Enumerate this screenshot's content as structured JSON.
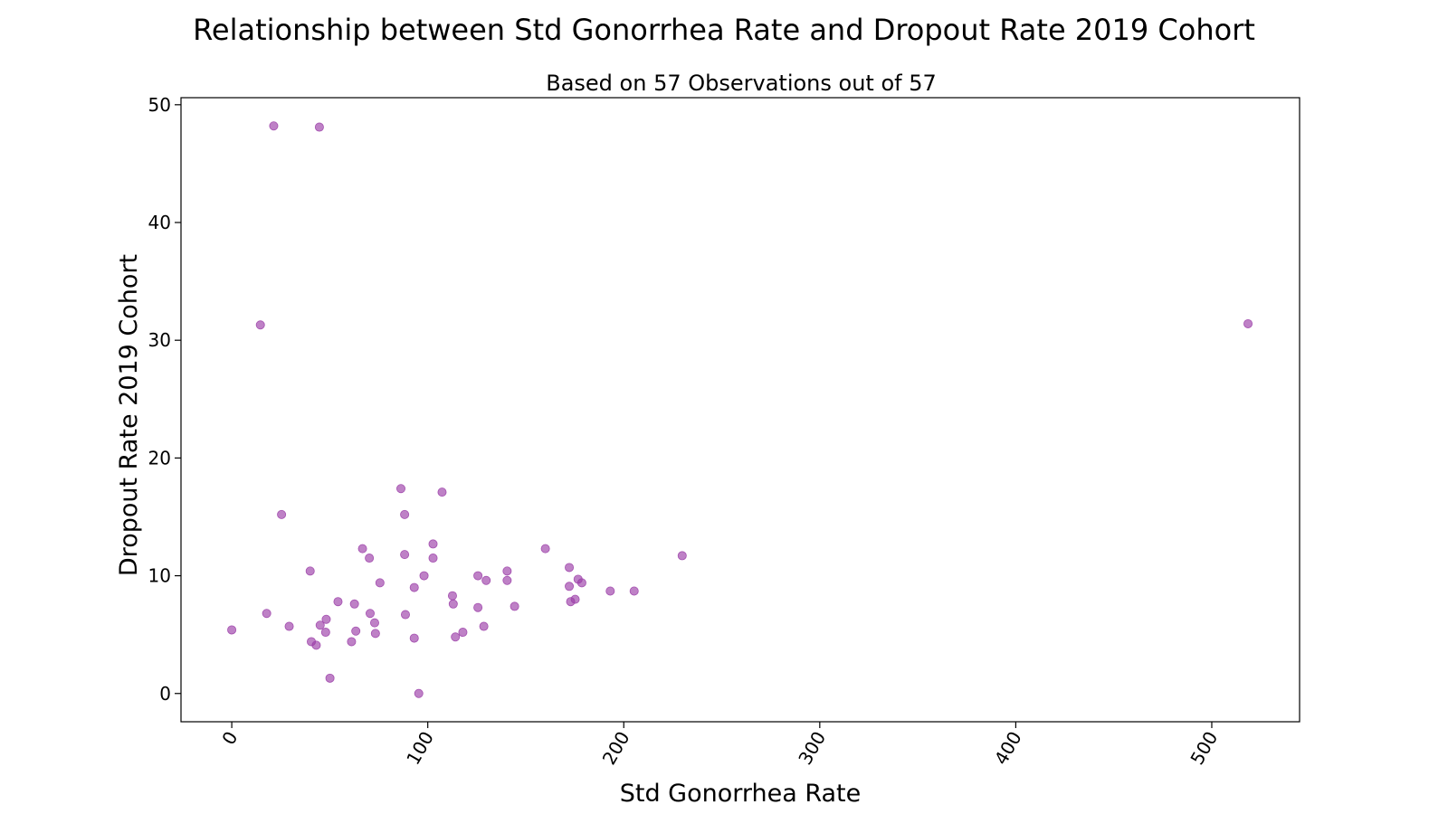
{
  "chart_data": {
    "type": "scatter",
    "title": "Relationship between Std Gonorrhea Rate and Dropout Rate 2019 Cohort",
    "subtitle": "Based on 57 Observations out of 57",
    "xlabel": "Std Gonorrhea Rate",
    "ylabel": "Dropout Rate 2019 Cohort",
    "xlim": [
      -25.9,
      544.8
    ],
    "ylim": [
      -2.4,
      50.6
    ],
    "xticks": [
      0,
      100,
      200,
      300,
      400,
      500
    ],
    "yticks": [
      0,
      10,
      20,
      30,
      40,
      50
    ],
    "xtick_labels": [
      "0",
      "100",
      "200",
      "300",
      "400",
      "500"
    ],
    "ytick_labels": [
      "0",
      "10",
      "20",
      "30",
      "40",
      "50"
    ],
    "grid": false,
    "marker_color": "#9b3ea8",
    "points": [
      {
        "x": 0.0,
        "y": 5.4
      },
      {
        "x": 14.6,
        "y": 31.3
      },
      {
        "x": 17.8,
        "y": 6.8
      },
      {
        "x": 21.4,
        "y": 48.2
      },
      {
        "x": 25.4,
        "y": 15.2
      },
      {
        "x": 29.3,
        "y": 5.7
      },
      {
        "x": 40.0,
        "y": 10.4
      },
      {
        "x": 40.6,
        "y": 4.4
      },
      {
        "x": 43.1,
        "y": 4.1
      },
      {
        "x": 44.7,
        "y": 48.1
      },
      {
        "x": 45.1,
        "y": 5.8
      },
      {
        "x": 47.9,
        "y": 5.2
      },
      {
        "x": 48.2,
        "y": 6.3
      },
      {
        "x": 50.1,
        "y": 1.3
      },
      {
        "x": 54.2,
        "y": 7.8
      },
      {
        "x": 61.1,
        "y": 4.4
      },
      {
        "x": 62.6,
        "y": 7.6
      },
      {
        "x": 63.3,
        "y": 5.3
      },
      {
        "x": 66.7,
        "y": 12.3
      },
      {
        "x": 70.2,
        "y": 11.5
      },
      {
        "x": 70.6,
        "y": 6.8
      },
      {
        "x": 72.9,
        "y": 6.0
      },
      {
        "x": 73.3,
        "y": 5.1
      },
      {
        "x": 75.6,
        "y": 9.4
      },
      {
        "x": 86.3,
        "y": 17.4
      },
      {
        "x": 88.2,
        "y": 15.2
      },
      {
        "x": 88.2,
        "y": 11.8
      },
      {
        "x": 88.6,
        "y": 6.7
      },
      {
        "x": 93.1,
        "y": 9.0
      },
      {
        "x": 93.1,
        "y": 4.7
      },
      {
        "x": 95.4,
        "y": 0.0
      },
      {
        "x": 98.1,
        "y": 10.0
      },
      {
        "x": 102.7,
        "y": 12.7
      },
      {
        "x": 102.7,
        "y": 11.5
      },
      {
        "x": 107.3,
        "y": 17.1
      },
      {
        "x": 112.6,
        "y": 8.3
      },
      {
        "x": 113.0,
        "y": 7.6
      },
      {
        "x": 114.1,
        "y": 4.8
      },
      {
        "x": 117.9,
        "y": 5.2
      },
      {
        "x": 125.6,
        "y": 10.0
      },
      {
        "x": 125.6,
        "y": 7.3
      },
      {
        "x": 128.6,
        "y": 5.7
      },
      {
        "x": 129.8,
        "y": 9.6
      },
      {
        "x": 140.5,
        "y": 10.4
      },
      {
        "x": 140.5,
        "y": 9.6
      },
      {
        "x": 144.3,
        "y": 7.4
      },
      {
        "x": 160.0,
        "y": 12.3
      },
      {
        "x": 172.2,
        "y": 10.7
      },
      {
        "x": 172.2,
        "y": 9.1
      },
      {
        "x": 172.9,
        "y": 7.8
      },
      {
        "x": 175.2,
        "y": 8.0
      },
      {
        "x": 176.7,
        "y": 9.7
      },
      {
        "x": 178.6,
        "y": 9.4
      },
      {
        "x": 193.1,
        "y": 8.7
      },
      {
        "x": 205.3,
        "y": 8.7
      },
      {
        "x": 229.8,
        "y": 11.7
      },
      {
        "x": 518.5,
        "y": 31.4
      }
    ]
  }
}
